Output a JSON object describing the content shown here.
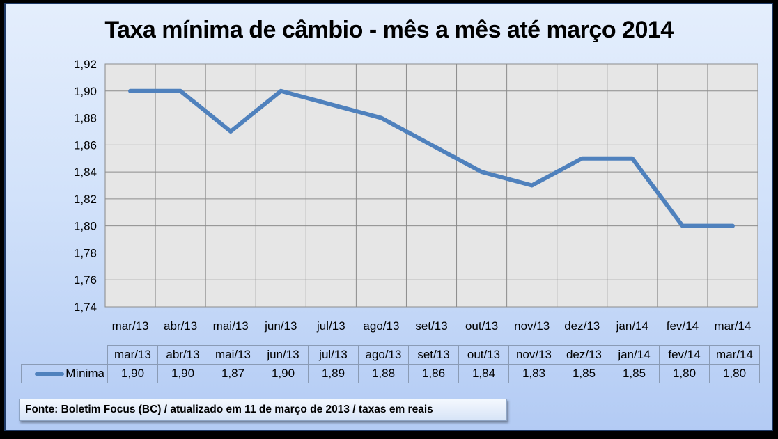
{
  "chart_data": {
    "type": "line",
    "title": "Taxa mínima de câmbio - mês a mês até março 2014",
    "categories": [
      "mar/13",
      "abr/13",
      "mai/13",
      "jun/13",
      "jul/13",
      "ago/13",
      "set/13",
      "out/13",
      "nov/13",
      "dez/13",
      "jan/14",
      "fev/14",
      "mar/14"
    ],
    "series": [
      {
        "name": "Mínima",
        "values": [
          1.9,
          1.9,
          1.87,
          1.9,
          1.89,
          1.88,
          1.86,
          1.84,
          1.83,
          1.85,
          1.85,
          1.8,
          1.8
        ],
        "labels": [
          "1,90",
          "1,90",
          "1,87",
          "1,90",
          "1,89",
          "1,88",
          "1,86",
          "1,84",
          "1,83",
          "1,85",
          "1,85",
          "1,80",
          "1,80"
        ],
        "color": "#4f81bd"
      }
    ],
    "ylim": [
      1.74,
      1.92
    ],
    "yticks": [
      "1,74",
      "1,76",
      "1,78",
      "1,80",
      "1,82",
      "1,84",
      "1,86",
      "1,88",
      "1,90",
      "1,92"
    ],
    "grid": true,
    "plot_background": "#e6e6e6",
    "data_table": true
  },
  "footer": "Fonte: Boletim Focus (BC) / atualizado  em 11 de março de 2013 / taxas em reais"
}
